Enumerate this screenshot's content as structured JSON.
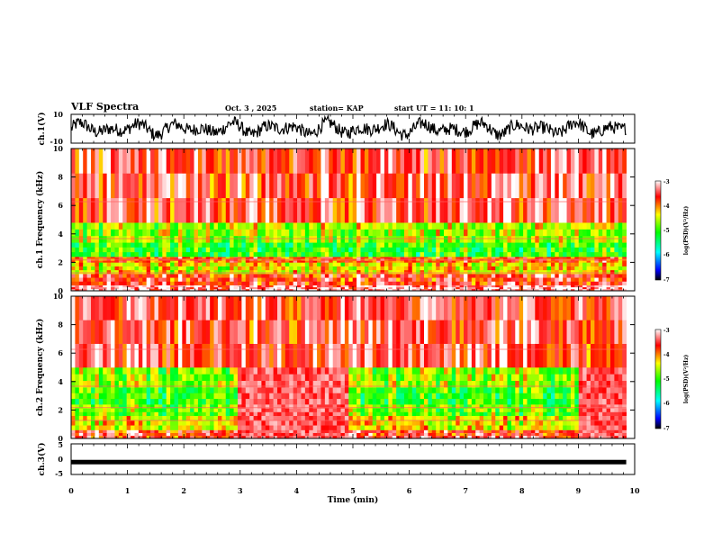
{
  "header": {
    "title": "VLF Spectra",
    "date": "Oct. 3 , 2025",
    "station": "station= KAP",
    "start_ut": "start UT = 11: 10: 1"
  },
  "colorbar": {
    "label": "log(PSD)(V²/Hz)",
    "ticks": [
      "-3",
      "-4",
      "-5",
      "-6",
      "-7"
    ],
    "range": [
      -7,
      -3
    ]
  },
  "chart_data": [
    {
      "type": "line",
      "name": "ch1-waveform",
      "ylabel": "ch.1(V)",
      "ylim": [
        -10,
        10
      ],
      "yticks": [
        "10",
        "-10"
      ],
      "x_range_min": [
        0,
        9.85
      ],
      "description_series": "noisy waveform oscillating roughly between -8 and 8 V"
    },
    {
      "type": "heatmap",
      "name": "ch1-spectrogram",
      "ylabel": "ch.1 Frequency (kHz)",
      "ylim": [
        0,
        10
      ],
      "yticks": [
        "0",
        "2",
        "4",
        "6",
        "8",
        "10"
      ],
      "x_range_min": [
        0,
        9.85
      ],
      "bands_khz": [
        {
          "from": 0.0,
          "to": 0.4,
          "level": -3.2
        },
        {
          "from": 0.4,
          "to": 1.2,
          "level": -3.6
        },
        {
          "from": 1.2,
          "to": 2.0,
          "level": -4.3
        },
        {
          "from": 2.0,
          "to": 2.4,
          "level": -3.8
        },
        {
          "from": 2.4,
          "to": 3.4,
          "level": -5.0
        },
        {
          "from": 3.4,
          "to": 4.8,
          "level": -4.6
        },
        {
          "from": 4.8,
          "to": 10.0,
          "level": -3.5
        }
      ]
    },
    {
      "type": "heatmap",
      "name": "ch2-spectrogram",
      "ylabel": "ch.2 Frequency (kHz)",
      "ylim": [
        0,
        10
      ],
      "yticks": [
        "0",
        "2",
        "4",
        "6",
        "8",
        "10"
      ],
      "x_range_min": [
        0,
        9.85
      ],
      "bands_khz": [
        {
          "from": 0.0,
          "to": 0.6,
          "level": -3.6
        },
        {
          "from": 0.6,
          "to": 1.6,
          "level": -4.4
        },
        {
          "from": 1.6,
          "to": 2.4,
          "level": -4.8
        },
        {
          "from": 2.4,
          "to": 3.6,
          "level": -5.0
        },
        {
          "from": 3.6,
          "to": 5.0,
          "level": -4.7
        },
        {
          "from": 5.0,
          "to": 10.0,
          "level": -3.5
        }
      ],
      "loud_intervals_min": [
        [
          2.95,
          4.95
        ],
        [
          9.0,
          9.85
        ]
      ]
    },
    {
      "type": "line",
      "name": "ch3-trace",
      "ylabel": "ch.3(V)",
      "ylim": [
        -5,
        5
      ],
      "yticks": [
        "5",
        "0",
        "-5"
      ],
      "x_range_min": [
        0,
        9.85
      ],
      "values_v": [
        -1.1,
        -1.1
      ]
    }
  ],
  "xaxis": {
    "label": "Time (min)",
    "ticks": [
      "0",
      "1",
      "2",
      "3",
      "4",
      "5",
      "6",
      "7",
      "8",
      "9",
      "10"
    ],
    "range": [
      0,
      10
    ]
  }
}
